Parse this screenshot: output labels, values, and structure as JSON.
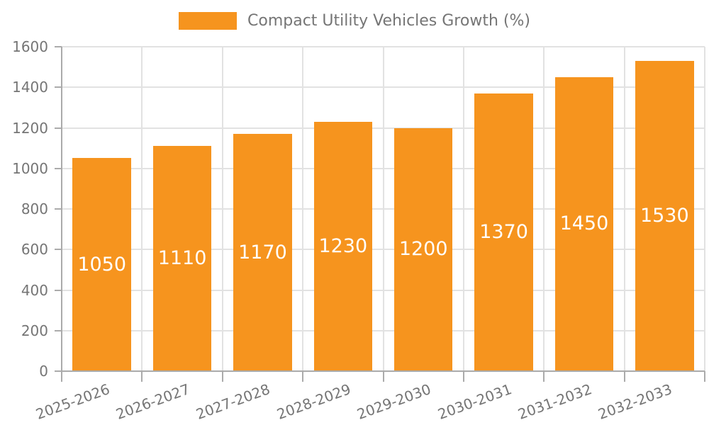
{
  "legend": {
    "label": "Compact Utility Vehicles Growth (%)"
  },
  "chart_data": {
    "type": "bar",
    "title": "",
    "categories": [
      "2025-2026",
      "2026-2027",
      "2027-2028",
      "2028-2029",
      "2029-2030",
      "2030-2031",
      "2031-2032",
      "2032-2033"
    ],
    "series": [
      {
        "name": "Compact Utility Vehicles Growth (%)",
        "values": [
          1050,
          1110,
          1170,
          1230,
          1200,
          1370,
          1450,
          1530
        ]
      }
    ],
    "value_labels_shown": true,
    "xlabel": "",
    "ylabel": "",
    "ylim": [
      0,
      1600
    ],
    "yticks": [
      0,
      200,
      400,
      600,
      800,
      1000,
      1200,
      1400,
      1600
    ],
    "grid": true,
    "legend_position": "top",
    "colors": {
      "bar": "#f6941e",
      "value_label": "#ffffff",
      "axis_text": "#757575",
      "grid_line": "#e2e2e2",
      "axis_line": "#ababab",
      "background": "#ffffff"
    }
  }
}
